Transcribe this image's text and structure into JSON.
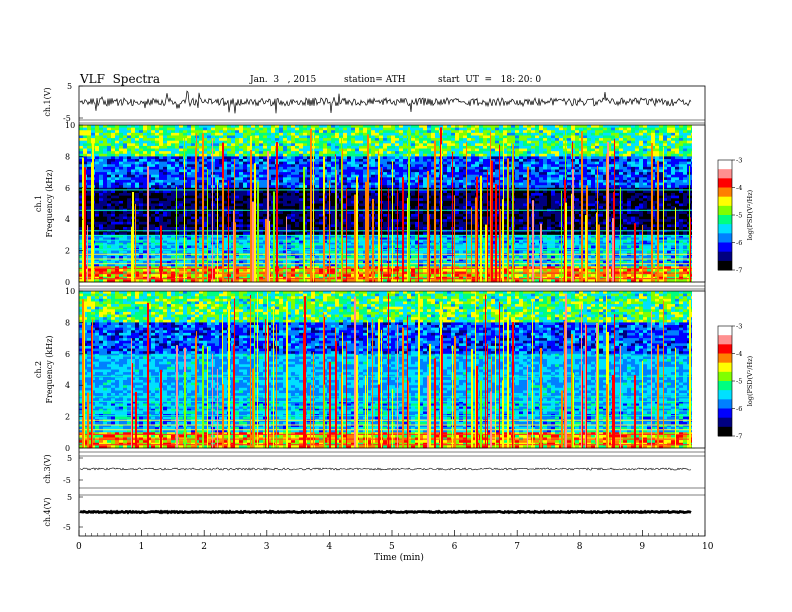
{
  "header": {
    "title": "VLF  Spectra",
    "date": "Jan.  3   , 2015",
    "station": "station= ATH",
    "start": "start  UT  =   18: 20: 0"
  },
  "chart_data": [
    {
      "type": "line",
      "panel": "ch1",
      "ylabel": "ch.1(V)",
      "ylim": [
        -5,
        5
      ],
      "yticks": [
        "5",
        "-5"
      ],
      "description_series": "noisy waveform centred near 0 V"
    },
    {
      "type": "heatmap",
      "panel": "ch1-spectrogram",
      "ylabel_top": "ch.1",
      "ylabel": "Frequency (kHz)",
      "ylim": [
        0,
        10
      ],
      "yticks": [
        "0",
        "2",
        "4",
        "6",
        "8",
        "10"
      ],
      "colorbar": {
        "label": "log(PSD(V²/Hz)",
        "range": [
          -7,
          -3
        ],
        "ticks": [
          "-3",
          "-4",
          "-5",
          "-6",
          "-7"
        ]
      }
    },
    {
      "type": "heatmap",
      "panel": "ch2-spectrogram",
      "ylabel_top": "ch.2",
      "ylabel": "Frequency (kHz)",
      "ylim": [
        0,
        10
      ],
      "yticks": [
        "0",
        "2",
        "4",
        "6",
        "8",
        "10"
      ],
      "colorbar": {
        "label": "log(PSD(V²/Hz)",
        "range": [
          -7,
          -3
        ],
        "ticks": [
          "-3",
          "-4",
          "-5",
          "-6",
          "-7"
        ]
      }
    },
    {
      "type": "line",
      "panel": "ch3",
      "ylabel": "ch.3(V)",
      "ylim": [
        -5,
        5
      ],
      "yticks": [
        "5",
        "-5"
      ]
    },
    {
      "type": "line",
      "panel": "ch4",
      "ylabel": "ch.4(V)",
      "ylim": [
        -5,
        5
      ],
      "yticks": [
        "5",
        "-5"
      ]
    }
  ],
  "xaxis": {
    "label": "Time  (min)",
    "range": [
      0,
      10
    ],
    "ticks": [
      "0",
      "1",
      "2",
      "3",
      "4",
      "5",
      "6",
      "7",
      "8",
      "9",
      "10"
    ]
  },
  "colors": {
    "colormap": [
      "#000000",
      "#000080",
      "#0000ff",
      "#0080ff",
      "#00e0ff",
      "#00ff80",
      "#80ff00",
      "#ffff00",
      "#ff8000",
      "#ff0000",
      "#ff9090",
      "#ffffff"
    ]
  }
}
